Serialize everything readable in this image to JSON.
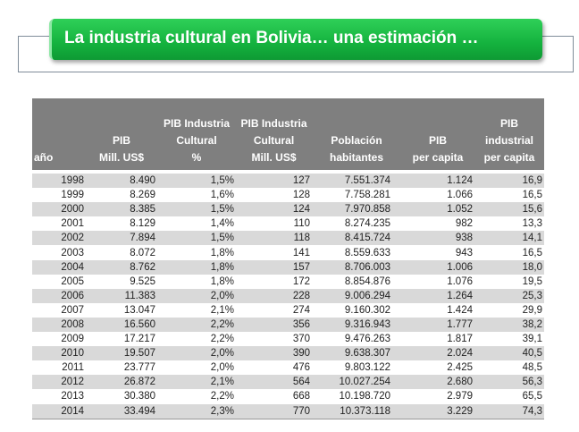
{
  "title": "La industria cultural en Bolivia… una estimación …",
  "table": {
    "headers": [
      [
        "",
        "",
        "año"
      ],
      [
        "",
        "PIB",
        "Mill. US$"
      ],
      [
        "PIB Industria",
        "Cultural",
        "%"
      ],
      [
        "PIB Industria",
        "Cultural",
        "Mill. US$"
      ],
      [
        "",
        "Población",
        "habitantes"
      ],
      [
        "",
        "PIB",
        "per capita"
      ],
      [
        "",
        "PIB industrial",
        "per capita"
      ]
    ],
    "rows": [
      [
        "1998",
        "8.490",
        "1,5%",
        "127",
        "7.551.374",
        "1.124",
        "16,9"
      ],
      [
        "1999",
        "8.269",
        "1,6%",
        "128",
        "7.758.281",
        "1.066",
        "16,5"
      ],
      [
        "2000",
        "8.385",
        "1,5%",
        "124",
        "7.970.858",
        "1.052",
        "15,6"
      ],
      [
        "2001",
        "8.129",
        "1,4%",
        "110",
        "8.274.235",
        "982",
        "13,3"
      ],
      [
        "2002",
        "7.894",
        "1,5%",
        "118",
        "8.415.724",
        "938",
        "14,1"
      ],
      [
        "2003",
        "8.072",
        "1,8%",
        "141",
        "8.559.633",
        "943",
        "16,5"
      ],
      [
        "2004",
        "8.762",
        "1,8%",
        "157",
        "8.706.003",
        "1.006",
        "18,0"
      ],
      [
        "2005",
        "9.525",
        "1,8%",
        "172",
        "8.854.876",
        "1.076",
        "19,5"
      ],
      [
        "2006",
        "11.383",
        "2,0%",
        "228",
        "9.006.294",
        "1.264",
        "25,3"
      ],
      [
        "2007",
        "13.047",
        "2,1%",
        "274",
        "9.160.302",
        "1.424",
        "29,9"
      ],
      [
        "2008",
        "16.560",
        "2,2%",
        "356",
        "9.316.943",
        "1.777",
        "38,2"
      ],
      [
        "2009",
        "17.217",
        "2,2%",
        "370",
        "9.476.263",
        "1.817",
        "39,1"
      ],
      [
        "2010",
        "19.507",
        "2,0%",
        "390",
        "9.638.307",
        "2.024",
        "40,5"
      ],
      [
        "2011",
        "23.777",
        "2,0%",
        "476",
        "9.803.122",
        "2.425",
        "48,5"
      ],
      [
        "2012",
        "26.872",
        "2,1%",
        "564",
        "10.027.254",
        "2.680",
        "56,3"
      ],
      [
        "2013",
        "30.380",
        "2,2%",
        "668",
        "10.198.720",
        "2.979",
        "65,5"
      ],
      [
        "2014",
        "33.494",
        "2,3%",
        "770",
        "10.373.118",
        "3.229",
        "74,3"
      ]
    ]
  }
}
